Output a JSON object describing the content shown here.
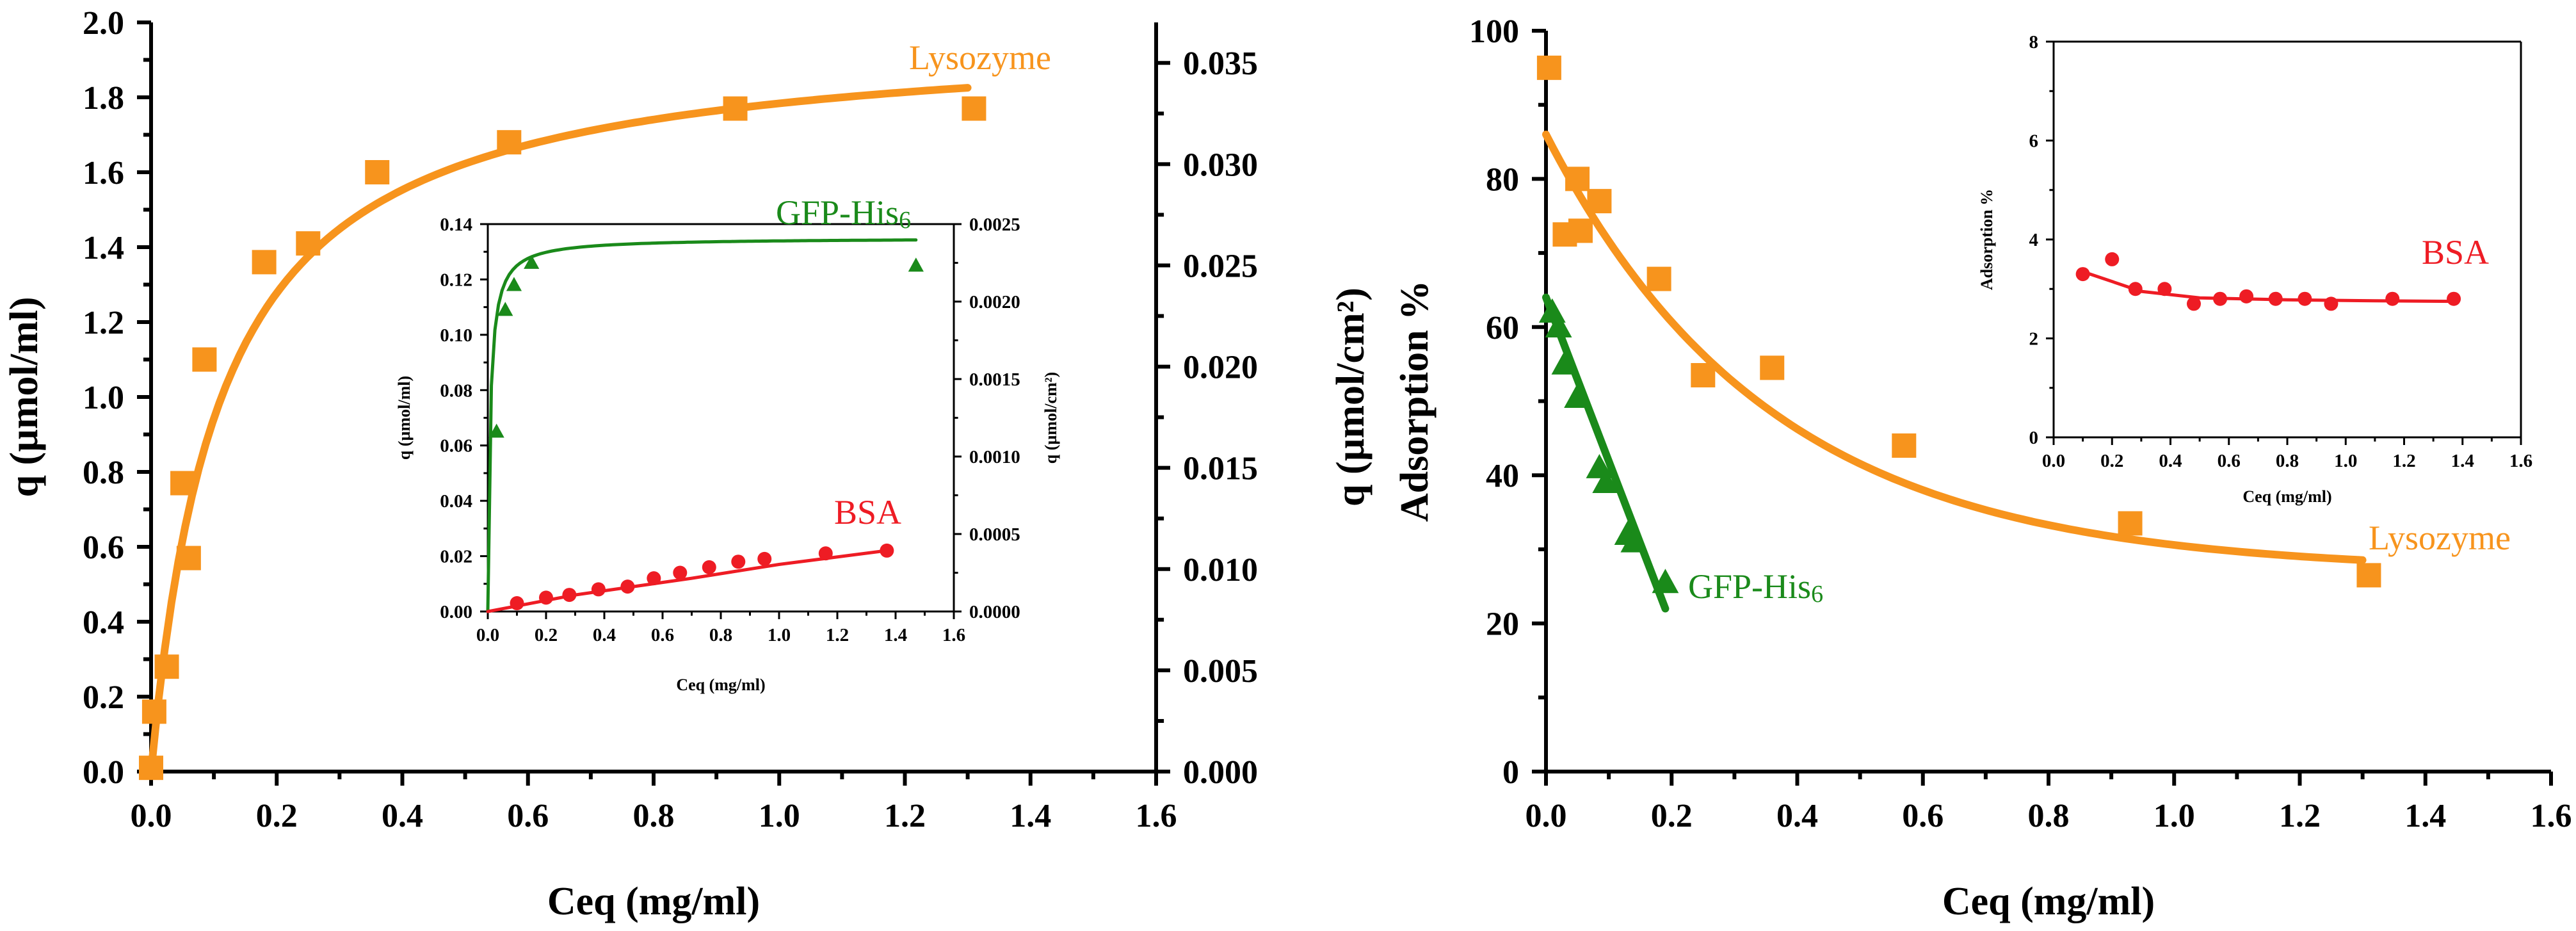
{
  "colors": {
    "lysozyme": "#f7941d",
    "gfp": "#1a8a1a",
    "bsa": "#ee1c24",
    "axis": "#000000"
  },
  "chart_data": [
    {
      "id": "left-main",
      "type": "scatter",
      "xlabel": "Ceq (mg/ml)",
      "ylabel": "q (µmol/ml)",
      "y2label": "q (µmol/cm²)",
      "xlim": [
        0,
        1.6
      ],
      "ylim": [
        0,
        2.0
      ],
      "y2lim": [
        0,
        0.037
      ],
      "xticks": [
        "0.0",
        "0.2",
        "0.4",
        "0.6",
        "0.8",
        "1.0",
        "1.2",
        "1.4",
        "1.6"
      ],
      "yticks": [
        "0.0",
        "0.2",
        "0.4",
        "0.6",
        "0.8",
        "1.0",
        "1.2",
        "1.4",
        "1.6",
        "1.8",
        "2.0"
      ],
      "y2ticks": [
        "0.000",
        "0.005",
        "0.010",
        "0.015",
        "0.020",
        "0.025",
        "0.030",
        "0.035"
      ],
      "series": [
        {
          "name": "Lysozyme",
          "color": "lysozyme",
          "marker": "square",
          "points": [
            [
              0.0,
              0.01
            ],
            [
              0.005,
              0.16
            ],
            [
              0.025,
              0.28
            ],
            [
              0.05,
              0.77
            ],
            [
              0.06,
              0.57
            ],
            [
              0.085,
              1.1
            ],
            [
              0.18,
              1.36
            ],
            [
              0.25,
              1.41
            ],
            [
              0.36,
              1.6
            ],
            [
              0.57,
              1.68
            ],
            [
              0.93,
              1.77
            ],
            [
              1.31,
              1.77
            ]
          ],
          "fit": {
            "model": "langmuir",
            "qmax": 1.98,
            "K": 0.11,
            "x_range": [
              0.0,
              1.3
            ]
          }
        }
      ]
    },
    {
      "id": "left-inset",
      "type": "scatter",
      "xlabel": "Ceq (mg/ml)",
      "ylabel": "q (µmol/ml)",
      "y2label": "q (µmol/cm²)",
      "xlim": [
        0,
        1.6
      ],
      "ylim": [
        0,
        0.14
      ],
      "y2lim": [
        0,
        0.0025
      ],
      "xticks": [
        "0.0",
        "0.2",
        "0.4",
        "0.6",
        "0.8",
        "1.0",
        "1.2",
        "1.4",
        "1.6"
      ],
      "yticks": [
        "0.00",
        "0.02",
        "0.04",
        "0.06",
        "0.08",
        "0.10",
        "0.12",
        "0.14"
      ],
      "y2ticks": [
        "0.0000",
        "0.0005",
        "0.0010",
        "0.0015",
        "0.0020",
        "0.0025"
      ],
      "series": [
        {
          "name": "GFP-His6",
          "color": "gfp",
          "marker": "triangle",
          "points": [
            [
              0.03,
              0.065
            ],
            [
              0.06,
              0.109
            ],
            [
              0.09,
              0.118
            ],
            [
              0.15,
              0.126
            ],
            [
              1.47,
              0.125
            ]
          ],
          "fit": {
            "model": "langmuir",
            "qmax": 0.135,
            "K": 0.008,
            "x_range": [
              0.0,
              1.47
            ]
          }
        },
        {
          "name": "BSA",
          "color": "bsa",
          "marker": "circle",
          "points": [
            [
              0.1,
              0.003
            ],
            [
              0.2,
              0.005
            ],
            [
              0.28,
              0.006
            ],
            [
              0.38,
              0.008
            ],
            [
              0.48,
              0.009
            ],
            [
              0.57,
              0.012
            ],
            [
              0.66,
              0.014
            ],
            [
              0.76,
              0.016
            ],
            [
              0.86,
              0.018
            ],
            [
              0.95,
              0.019
            ],
            [
              1.16,
              0.021
            ],
            [
              1.37,
              0.022
            ]
          ],
          "fit": {
            "model": "line",
            "points": [
              [
                0.0,
                0.0
              ],
              [
                0.3,
                0.006
              ],
              [
                0.7,
                0.012
              ],
              [
                1.0,
                0.017
              ],
              [
                1.37,
                0.022
              ]
            ]
          }
        }
      ]
    },
    {
      "id": "right-main",
      "type": "scatter",
      "xlabel": "Ceq (mg/ml)",
      "ylabel": "Adsorption %",
      "xlim": [
        0,
        1.6
      ],
      "ylim": [
        0,
        100
      ],
      "xticks": [
        "0.0",
        "0.2",
        "0.4",
        "0.6",
        "0.8",
        "1.0",
        "1.2",
        "1.4",
        "1.6"
      ],
      "yticks": [
        "0",
        "20",
        "40",
        "60",
        "80",
        "100"
      ],
      "series": [
        {
          "name": "Lysozyme",
          "color": "lysozyme",
          "marker": "square",
          "points": [
            [
              0.005,
              95
            ],
            [
              0.03,
              72.5
            ],
            [
              0.055,
              73
            ],
            [
              0.05,
              80
            ],
            [
              0.085,
              77
            ],
            [
              0.18,
              66.5
            ],
            [
              0.25,
              53.5
            ],
            [
              0.36,
              54.5
            ],
            [
              0.57,
              44
            ],
            [
              0.93,
              33.5
            ],
            [
              1.31,
              26.5
            ]
          ],
          "fit": {
            "model": "exp",
            "a": 27,
            "b": 59,
            "c": 2.8,
            "x_range": [
              0.0,
              1.3
            ]
          }
        },
        {
          "name": "GFP-His6",
          "color": "gfp",
          "marker": "triangle",
          "points": [
            [
              0.01,
              62
            ],
            [
              0.02,
              60
            ],
            [
              0.03,
              55
            ],
            [
              0.05,
              50.5
            ],
            [
              0.085,
              41
            ],
            [
              0.095,
              39
            ],
            [
              0.13,
              32
            ],
            [
              0.14,
              31
            ],
            [
              0.19,
              25.5
            ]
          ],
          "fit": {
            "model": "line",
            "points": [
              [
                0.0,
                64
              ],
              [
                0.19,
                22
              ]
            ]
          }
        }
      ]
    },
    {
      "id": "right-inset",
      "type": "scatter",
      "xlabel": "Ceq (mg/ml)",
      "ylabel": "Adsorption %",
      "xlim": [
        0,
        1.6
      ],
      "ylim": [
        0,
        8
      ],
      "xticks": [
        "0.0",
        "0.2",
        "0.4",
        "0.6",
        "0.8",
        "1.0",
        "1.2",
        "1.4",
        "1.6"
      ],
      "yticks": [
        "0",
        "2",
        "4",
        "6",
        "8"
      ],
      "series": [
        {
          "name": "BSA",
          "color": "bsa",
          "marker": "circle",
          "points": [
            [
              0.1,
              3.3
            ],
            [
              0.2,
              3.6
            ],
            [
              0.28,
              3.0
            ],
            [
              0.38,
              3.0
            ],
            [
              0.48,
              2.7
            ],
            [
              0.57,
              2.8
            ],
            [
              0.66,
              2.85
            ],
            [
              0.76,
              2.8
            ],
            [
              0.86,
              2.8
            ],
            [
              0.95,
              2.7
            ],
            [
              1.16,
              2.8
            ],
            [
              1.37,
              2.8
            ]
          ],
          "fit": {
            "model": "line",
            "points": [
              [
                0.1,
                3.35
              ],
              [
                0.3,
                2.95
              ],
              [
                0.5,
                2.82
              ],
              [
                0.8,
                2.78
              ],
              [
                1.1,
                2.76
              ],
              [
                1.37,
                2.75
              ]
            ]
          }
        }
      ]
    }
  ],
  "labels": {
    "left_lysozyme": "Lysozyme",
    "inset_gfp": "GFP-His",
    "inset_gfp_sub": "6",
    "inset_bsa": "BSA",
    "right_lysozyme": "Lysozyme",
    "right_gfp": "GFP-His",
    "right_gfp_sub": "6",
    "right_inset_bsa": "BSA"
  }
}
